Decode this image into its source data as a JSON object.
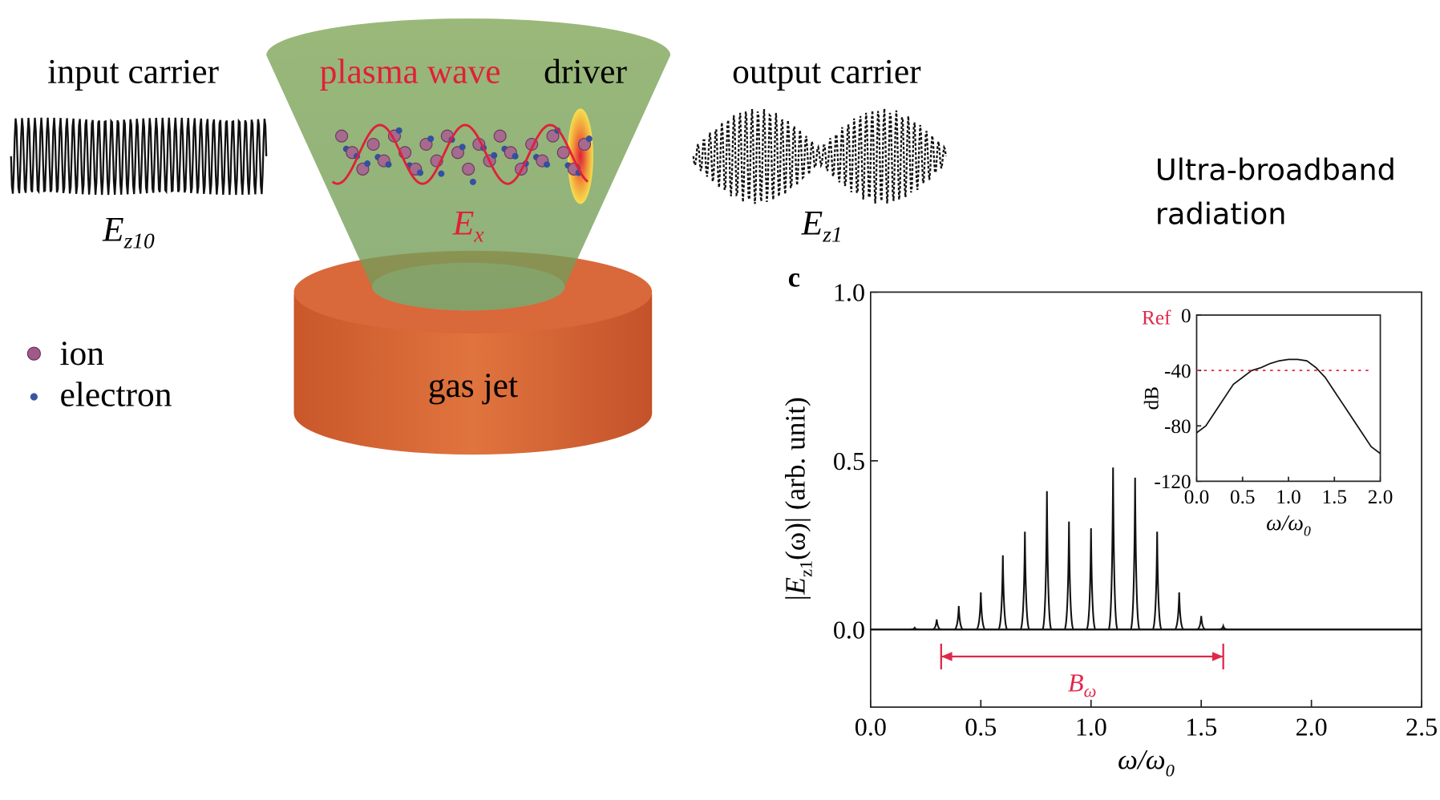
{
  "diagram": {
    "input_label": "input carrier",
    "input_field": "E",
    "input_field_sub": "z10",
    "plasma_label": "plasma wave",
    "driver_label": "driver",
    "plasma_field": "E",
    "plasma_field_sub": "x",
    "output_label": "output carrier",
    "output_field": "E",
    "output_field_sub": "z1",
    "legend": [
      "ion",
      "electron"
    ],
    "jet_label": "gas jet",
    "caption": [
      "Ultra-broadband",
      "radiation"
    ],
    "panel_label": "c"
  },
  "chart_data": [
    {
      "type": "spikes",
      "x": [
        0.2,
        0.3,
        0.4,
        0.5,
        0.6,
        0.7,
        0.8,
        0.9,
        1.0,
        1.1,
        1.2,
        1.3,
        1.4,
        1.5,
        1.6
      ],
      "values": [
        0.005,
        0.03,
        0.07,
        0.11,
        0.22,
        0.29,
        0.41,
        0.32,
        0.3,
        0.48,
        0.45,
        0.29,
        0.11,
        0.04,
        0.01
      ],
      "color": "#111111",
      "xlim": [
        0,
        2.5
      ],
      "ylim": [
        -0.23,
        1.0
      ],
      "xticks": [
        {
          "value": 0,
          "label": "0.0"
        },
        0.5,
        {
          "value": 1,
          "label": "1.0"
        },
        1.5,
        {
          "value": 2,
          "label": "2.0"
        },
        2.5
      ],
      "yticks": [
        {
          "value": 0,
          "label": "0.0"
        },
        0.5,
        {
          "value": 1,
          "label": "1.0"
        }
      ],
      "ylabel": [
        "|E",
        "z1",
        "(ω)| (arb. unit)"
      ],
      "xlabel": [
        "ω/ω",
        "0"
      ],
      "band": {
        "start": 0.32,
        "end": 1.6,
        "level": -0.08,
        "label": "B",
        "label_sub": "ω",
        "color": "#e0284a"
      }
    },
    {
      "type": "line",
      "x": [
        0,
        0.1,
        0.2,
        0.3,
        0.4,
        0.5,
        0.6,
        0.7,
        0.8,
        0.9,
        1.0,
        1.1,
        1.2,
        1.3,
        1.4,
        1.5,
        1.6,
        1.7,
        1.8,
        1.9,
        2.0
      ],
      "values": [
        -85,
        -80,
        -70,
        -60,
        -50,
        -45,
        -40,
        -38,
        -35,
        -33,
        -32,
        -32,
        -33,
        -38,
        -45,
        -55,
        -65,
        -75,
        -85,
        -95,
        -100
      ],
      "color": "#111111",
      "xlim": [
        0,
        2
      ],
      "ylim": [
        -120,
        0
      ],
      "xticks": [
        {
          "value": 0,
          "label": "0.0"
        },
        0.5,
        {
          "value": 1,
          "label": "1.0"
        },
        1.5,
        {
          "value": 2,
          "label": "2.0"
        }
      ],
      "yticks": [
        0,
        -40,
        -80,
        -120
      ],
      "ylabel": "dB",
      "xlabel": [
        "ω/ω",
        "0"
      ],
      "ref": {
        "value": -40,
        "label": "Ref",
        "color": "#e0284a"
      }
    }
  ]
}
